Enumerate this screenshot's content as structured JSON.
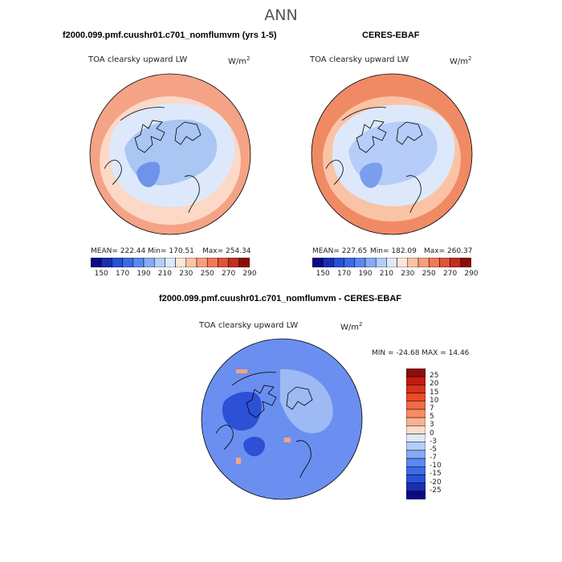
{
  "figure": {
    "title": "ANN"
  },
  "panels": [
    {
      "title": "f2000.099.pmf.cuushr01.c701_nomflumvm (yrs 1-5)",
      "variable": "TOA clearsky upward LW",
      "units": "W/m",
      "units_exp": "2",
      "stats": {
        "mean": "MEAN= 222.44",
        "min": "Min= 170.51",
        "max": "Max= 254.34"
      }
    },
    {
      "title": "CERES-EBAF",
      "variable": "TOA clearsky upward LW",
      "units": "W/m",
      "units_exp": "2",
      "stats": {
        "mean": "MEAN= 227.65",
        "min": "Min= 182.09",
        "max": "Max= 260.37"
      }
    },
    {
      "title": "f2000.099.pmf.cuushr01.c701_nomflumvm - CERES-EBAF",
      "variable": "TOA clearsky upward LW",
      "units": "W/m",
      "units_exp": "2",
      "stats": {
        "minmax": "MIN = -24.68 MAX =  14.46"
      }
    }
  ],
  "colorbar_abs": {
    "ticks": [
      "150",
      "170",
      "190",
      "210",
      "230",
      "250",
      "270",
      "290"
    ],
    "colors": [
      "#0a0a85",
      "#1a2fb0",
      "#2a4fd8",
      "#3c6be8",
      "#5b88ee",
      "#86aaf3",
      "#b5cdf8",
      "#dde9fb",
      "#fde6d6",
      "#fbc3a5",
      "#f79f7c",
      "#f07a57",
      "#e0533a",
      "#c22e1f",
      "#8b0d0a"
    ]
  },
  "colorbar_diff": {
    "ticks": [
      "25",
      "20",
      "15",
      "10",
      "7",
      "5",
      "3",
      "0",
      "-3",
      "-5",
      "-7",
      "-10",
      "-15",
      "-20",
      "-25"
    ],
    "colors": [
      "#8b0d0a",
      "#c11b12",
      "#d9321c",
      "#ea4a27",
      "#f26b43",
      "#f78d67",
      "#fab290",
      "#fddccb",
      "#dde9fb",
      "#b5cdf8",
      "#86aaf3",
      "#5b88ee",
      "#3c6be8",
      "#2a4fd8",
      "#1a2fb0",
      "#0a0a85"
    ]
  },
  "map_fields": {
    "panel1": {
      "outer": "#f4a386",
      "mid": "#fcd8c6",
      "inner": "#dde9fb",
      "core": "#aac6f3",
      "deep": "#6f93e8"
    },
    "panel2": {
      "outer": "#f08a64",
      "mid": "#fbc3a5",
      "inner": "#dde9fb",
      "core": "#b5cdf8",
      "deep": "#7a9ded"
    },
    "diff": {
      "base": "#6b8ff0",
      "light": "#9dbaf5",
      "deep": "#2c50d6",
      "pos": "#f7a383"
    }
  }
}
